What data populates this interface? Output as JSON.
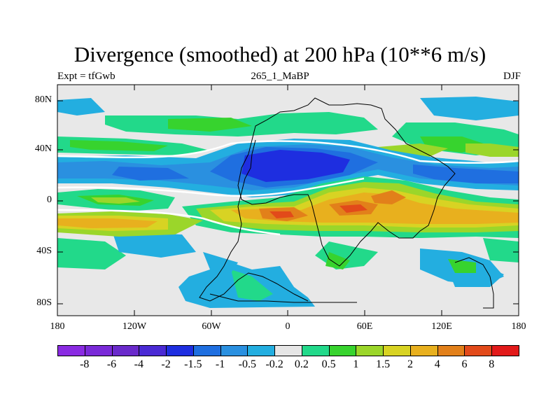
{
  "title": "Divergence (smoothed) at 200 hPa (10**6 m/s)",
  "subtitle_left": "Expt = tfGwb",
  "subtitle_center": "265_1_MaBP",
  "subtitle_right": "DJF",
  "lat_labels": [
    "80N",
    "40N",
    "0",
    "40S",
    "80S"
  ],
  "lon_labels": [
    "180",
    "120W",
    "60W",
    "0",
    "60E",
    "120E",
    "180"
  ],
  "colorbar": {
    "labels": [
      "-8",
      "-6",
      "-4",
      "-2",
      "-1.5",
      "-1",
      "-0.5",
      "-0.2",
      "0.2",
      "0.5",
      "1",
      "1.5",
      "2",
      "4",
      "6",
      "8"
    ],
    "colors": [
      "#8a2be2",
      "#7a2ad8",
      "#6a2acb",
      "#4a2ad4",
      "#1e2ee0",
      "#1f6fe0",
      "#2a90e0",
      "#23aee0",
      "#e6e6e6",
      "#22d98a",
      "#37d32e",
      "#9bd62a",
      "#d8d323",
      "#e8b01e",
      "#e2801a",
      "#e24a1a",
      "#e21a1a"
    ]
  }
}
